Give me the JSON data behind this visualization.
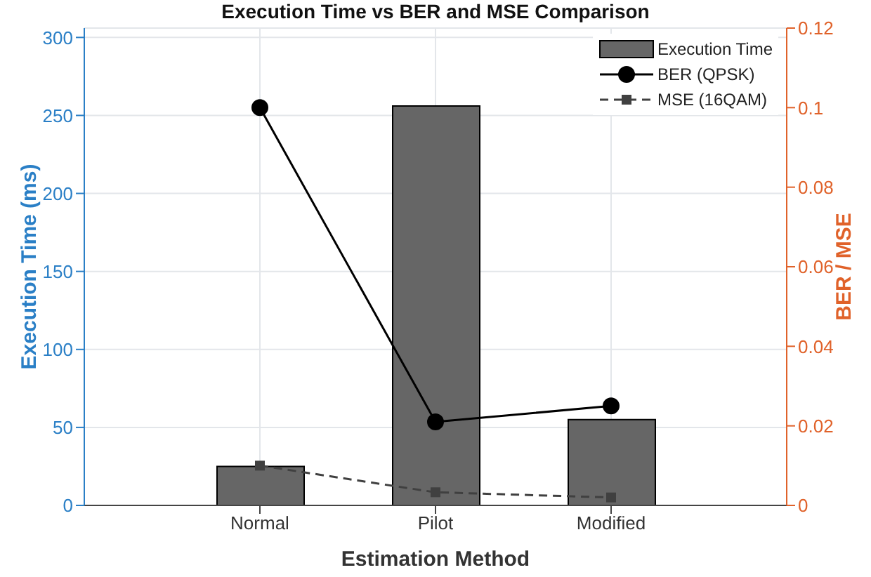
{
  "chart_data": {
    "type": "bar",
    "title": "Execution Time vs BER and MSE Comparison",
    "xlabel": "Estimation Method",
    "ylabel": "Execution Time (ms)",
    "y2label": "BER / MSE",
    "categories": [
      "Normal",
      "Pilot",
      "Modified"
    ],
    "series": [
      {
        "name": "Execution Time",
        "color": "#666666",
        "values": [
          25,
          256,
          55
        ]
      },
      {
        "name": "BER (QPSK)",
        "type": "line",
        "axis": "y2",
        "color": "#000000",
        "marker": "circle",
        "line_style": "solid",
        "values": [
          0.1,
          0.021,
          0.025
        ]
      },
      {
        "name": "MSE (16QAM)",
        "type": "line",
        "axis": "y2",
        "color": "#404040",
        "marker": "square",
        "line_style": "dashed",
        "values": [
          0.01,
          0.0033,
          0.002
        ]
      }
    ],
    "ylim": [
      0,
      306
    ],
    "yticks": [
      0,
      50,
      100,
      150,
      200,
      250,
      300
    ],
    "y2lim": [
      0,
      0.12
    ],
    "y2ticks": [
      0,
      0.02,
      0.04,
      0.06,
      0.08,
      0.1,
      0.12
    ],
    "grid": true,
    "legend": "top right"
  }
}
